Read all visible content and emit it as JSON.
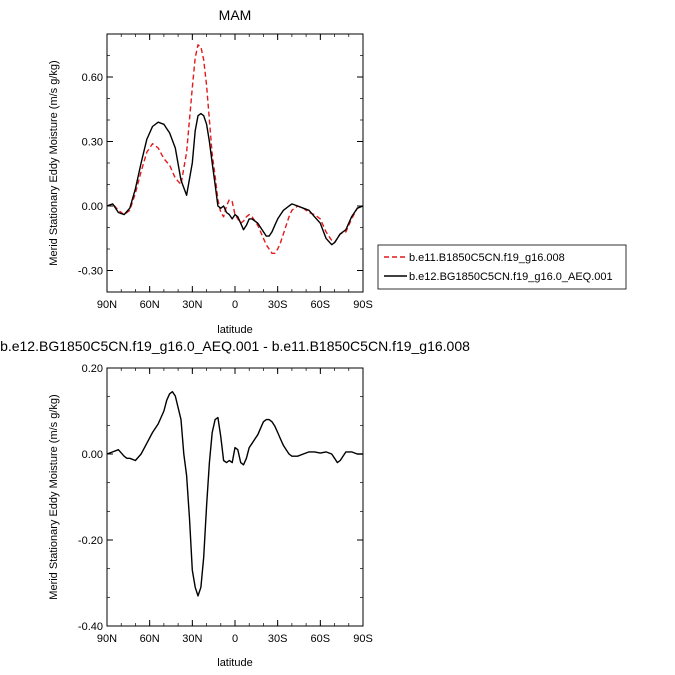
{
  "chart_data": [
    {
      "type": "line",
      "title": "MAM",
      "xlabel": "latitude",
      "ylabel": "Merid Stationary Eddy Moisture (m/s g/kg)",
      "xlim": [
        90,
        -90
      ],
      "ylim": [
        -0.4,
        0.8
      ],
      "x_ticks": [
        90,
        60,
        30,
        0,
        -30,
        -60,
        -90
      ],
      "x_tick_labels": [
        "90N",
        "60N",
        "30N",
        "0",
        "30S",
        "60S",
        "90S"
      ],
      "y_ticks": [
        -0.3,
        0.0,
        0.3,
        0.6
      ],
      "y_tick_labels": [
        "-0.30",
        "0.00",
        "0.30",
        "0.60"
      ],
      "legend_position": "right",
      "series": [
        {
          "name": "b.e11.B1850C5CN.f19_g16.008",
          "color": "#e31a1c",
          "dash": "dashed",
          "x": [
            90,
            86,
            82,
            78,
            74,
            70,
            66,
            62,
            58,
            54,
            50,
            46,
            42,
            38,
            34,
            30,
            28,
            26,
            24,
            22,
            20,
            18,
            16,
            14,
            12,
            10,
            8,
            6,
            4,
            2,
            0,
            -2,
            -4,
            -6,
            -8,
            -10,
            -12,
            -14,
            -16,
            -18,
            -20,
            -22,
            -24,
            -26,
            -28,
            -30,
            -32,
            -34,
            -36,
            -38,
            -40,
            -44,
            -48,
            -52,
            -56,
            -60,
            -64,
            -68,
            -70,
            -72,
            -74,
            -78,
            -82,
            -86,
            -90
          ],
          "y": [
            0.0,
            0.01,
            -0.02,
            -0.04,
            -0.02,
            0.06,
            0.16,
            0.25,
            0.29,
            0.27,
            0.22,
            0.19,
            0.13,
            0.1,
            0.25,
            0.55,
            0.69,
            0.75,
            0.74,
            0.68,
            0.56,
            0.4,
            0.24,
            0.14,
            0.03,
            -0.03,
            -0.05,
            0.0,
            0.03,
            0.02,
            -0.04,
            -0.06,
            -0.08,
            -0.07,
            -0.05,
            -0.04,
            -0.05,
            -0.07,
            -0.09,
            -0.12,
            -0.15,
            -0.18,
            -0.2,
            -0.22,
            -0.22,
            -0.2,
            -0.17,
            -0.13,
            -0.09,
            -0.05,
            -0.02,
            0.0,
            -0.01,
            -0.03,
            -0.04,
            -0.06,
            -0.12,
            -0.16,
            -0.17,
            -0.15,
            -0.13,
            -0.12,
            -0.06,
            -0.01,
            0.0
          ]
        },
        {
          "name": "b.e12.BG1850C5CN.f19_g16.0_AEQ.001",
          "color": "#000000",
          "dash": "solid",
          "x": [
            90,
            86,
            82,
            78,
            74,
            70,
            66,
            62,
            58,
            54,
            50,
            48,
            46,
            42,
            38,
            34,
            30,
            28,
            26,
            24,
            22,
            20,
            18,
            16,
            14,
            12,
            10,
            8,
            6,
            4,
            2,
            0,
            -2,
            -4,
            -6,
            -8,
            -10,
            -12,
            -14,
            -16,
            -18,
            -20,
            -22,
            -24,
            -26,
            -28,
            -30,
            -32,
            -34,
            -36,
            -38,
            -40,
            -44,
            -48,
            -52,
            -56,
            -60,
            -64,
            -68,
            -70,
            -72,
            -74,
            -78,
            -82,
            -86,
            -90
          ],
          "y": [
            0.0,
            0.01,
            -0.03,
            -0.04,
            -0.01,
            0.08,
            0.2,
            0.31,
            0.37,
            0.39,
            0.38,
            0.36,
            0.34,
            0.27,
            0.12,
            0.05,
            0.2,
            0.35,
            0.42,
            0.43,
            0.42,
            0.38,
            0.3,
            0.2,
            0.1,
            0.0,
            -0.01,
            0.0,
            -0.03,
            -0.04,
            -0.06,
            -0.04,
            -0.05,
            -0.08,
            -0.11,
            -0.09,
            -0.06,
            -0.06,
            -0.07,
            -0.08,
            -0.1,
            -0.12,
            -0.14,
            -0.14,
            -0.12,
            -0.09,
            -0.06,
            -0.04,
            -0.02,
            -0.01,
            0.0,
            0.01,
            0.0,
            -0.01,
            -0.02,
            -0.05,
            -0.08,
            -0.15,
            -0.18,
            -0.17,
            -0.15,
            -0.13,
            -0.11,
            -0.05,
            -0.01,
            0.0
          ]
        }
      ]
    },
    {
      "type": "line",
      "title": "b.e12.BG1850C5CN.f19_g16.0_AEQ.001 - b.e11.B1850C5CN.f19_g16.008",
      "xlabel": "latitude",
      "ylabel": "Merid Stationary Eddy Moisture (m/s g/kg)",
      "xlim": [
        90,
        -90
      ],
      "ylim": [
        -0.4,
        0.2
      ],
      "x_ticks": [
        90,
        60,
        30,
        0,
        -30,
        -60,
        -90
      ],
      "x_tick_labels": [
        "90N",
        "60N",
        "30N",
        "0",
        "30S",
        "60S",
        "90S"
      ],
      "y_ticks": [
        -0.4,
        -0.2,
        0.0,
        0.2
      ],
      "y_tick_labels": [
        "-0.40",
        "-0.20",
        "0.00",
        "0.20"
      ],
      "series": [
        {
          "color": "#000000",
          "dash": "solid",
          "x": [
            90,
            86,
            82,
            78,
            76,
            74,
            70,
            66,
            62,
            58,
            54,
            50,
            48,
            46,
            44,
            42,
            38,
            36,
            34,
            32,
            30,
            28,
            26,
            24,
            22,
            20,
            18,
            16,
            14,
            12,
            10,
            8,
            6,
            4,
            2,
            0,
            -2,
            -4,
            -6,
            -8,
            -10,
            -12,
            -14,
            -16,
            -18,
            -20,
            -22,
            -24,
            -26,
            -28,
            -30,
            -32,
            -34,
            -36,
            -38,
            -40,
            -44,
            -48,
            -52,
            -56,
            -60,
            -64,
            -68,
            -70,
            -72,
            -74,
            -78,
            -82,
            -86,
            -90
          ],
          "y": [
            0.0,
            0.005,
            0.01,
            -0.005,
            -0.01,
            -0.01,
            -0.015,
            0.0,
            0.025,
            0.05,
            0.07,
            0.1,
            0.125,
            0.14,
            0.145,
            0.135,
            0.08,
            0.0,
            -0.05,
            -0.15,
            -0.27,
            -0.31,
            -0.33,
            -0.31,
            -0.24,
            -0.12,
            -0.02,
            0.05,
            0.08,
            0.085,
            0.04,
            -0.015,
            -0.02,
            -0.015,
            -0.02,
            0.015,
            0.01,
            -0.02,
            -0.025,
            -0.01,
            0.015,
            0.025,
            0.035,
            0.045,
            0.06,
            0.075,
            0.08,
            0.08,
            0.075,
            0.065,
            0.05,
            0.035,
            0.02,
            0.01,
            0.0,
            -0.005,
            -0.005,
            0.0,
            0.005,
            0.005,
            0.002,
            0.005,
            0.0,
            -0.01,
            -0.02,
            -0.015,
            0.005,
            0.005,
            0.0,
            0.0
          ]
        }
      ]
    }
  ]
}
